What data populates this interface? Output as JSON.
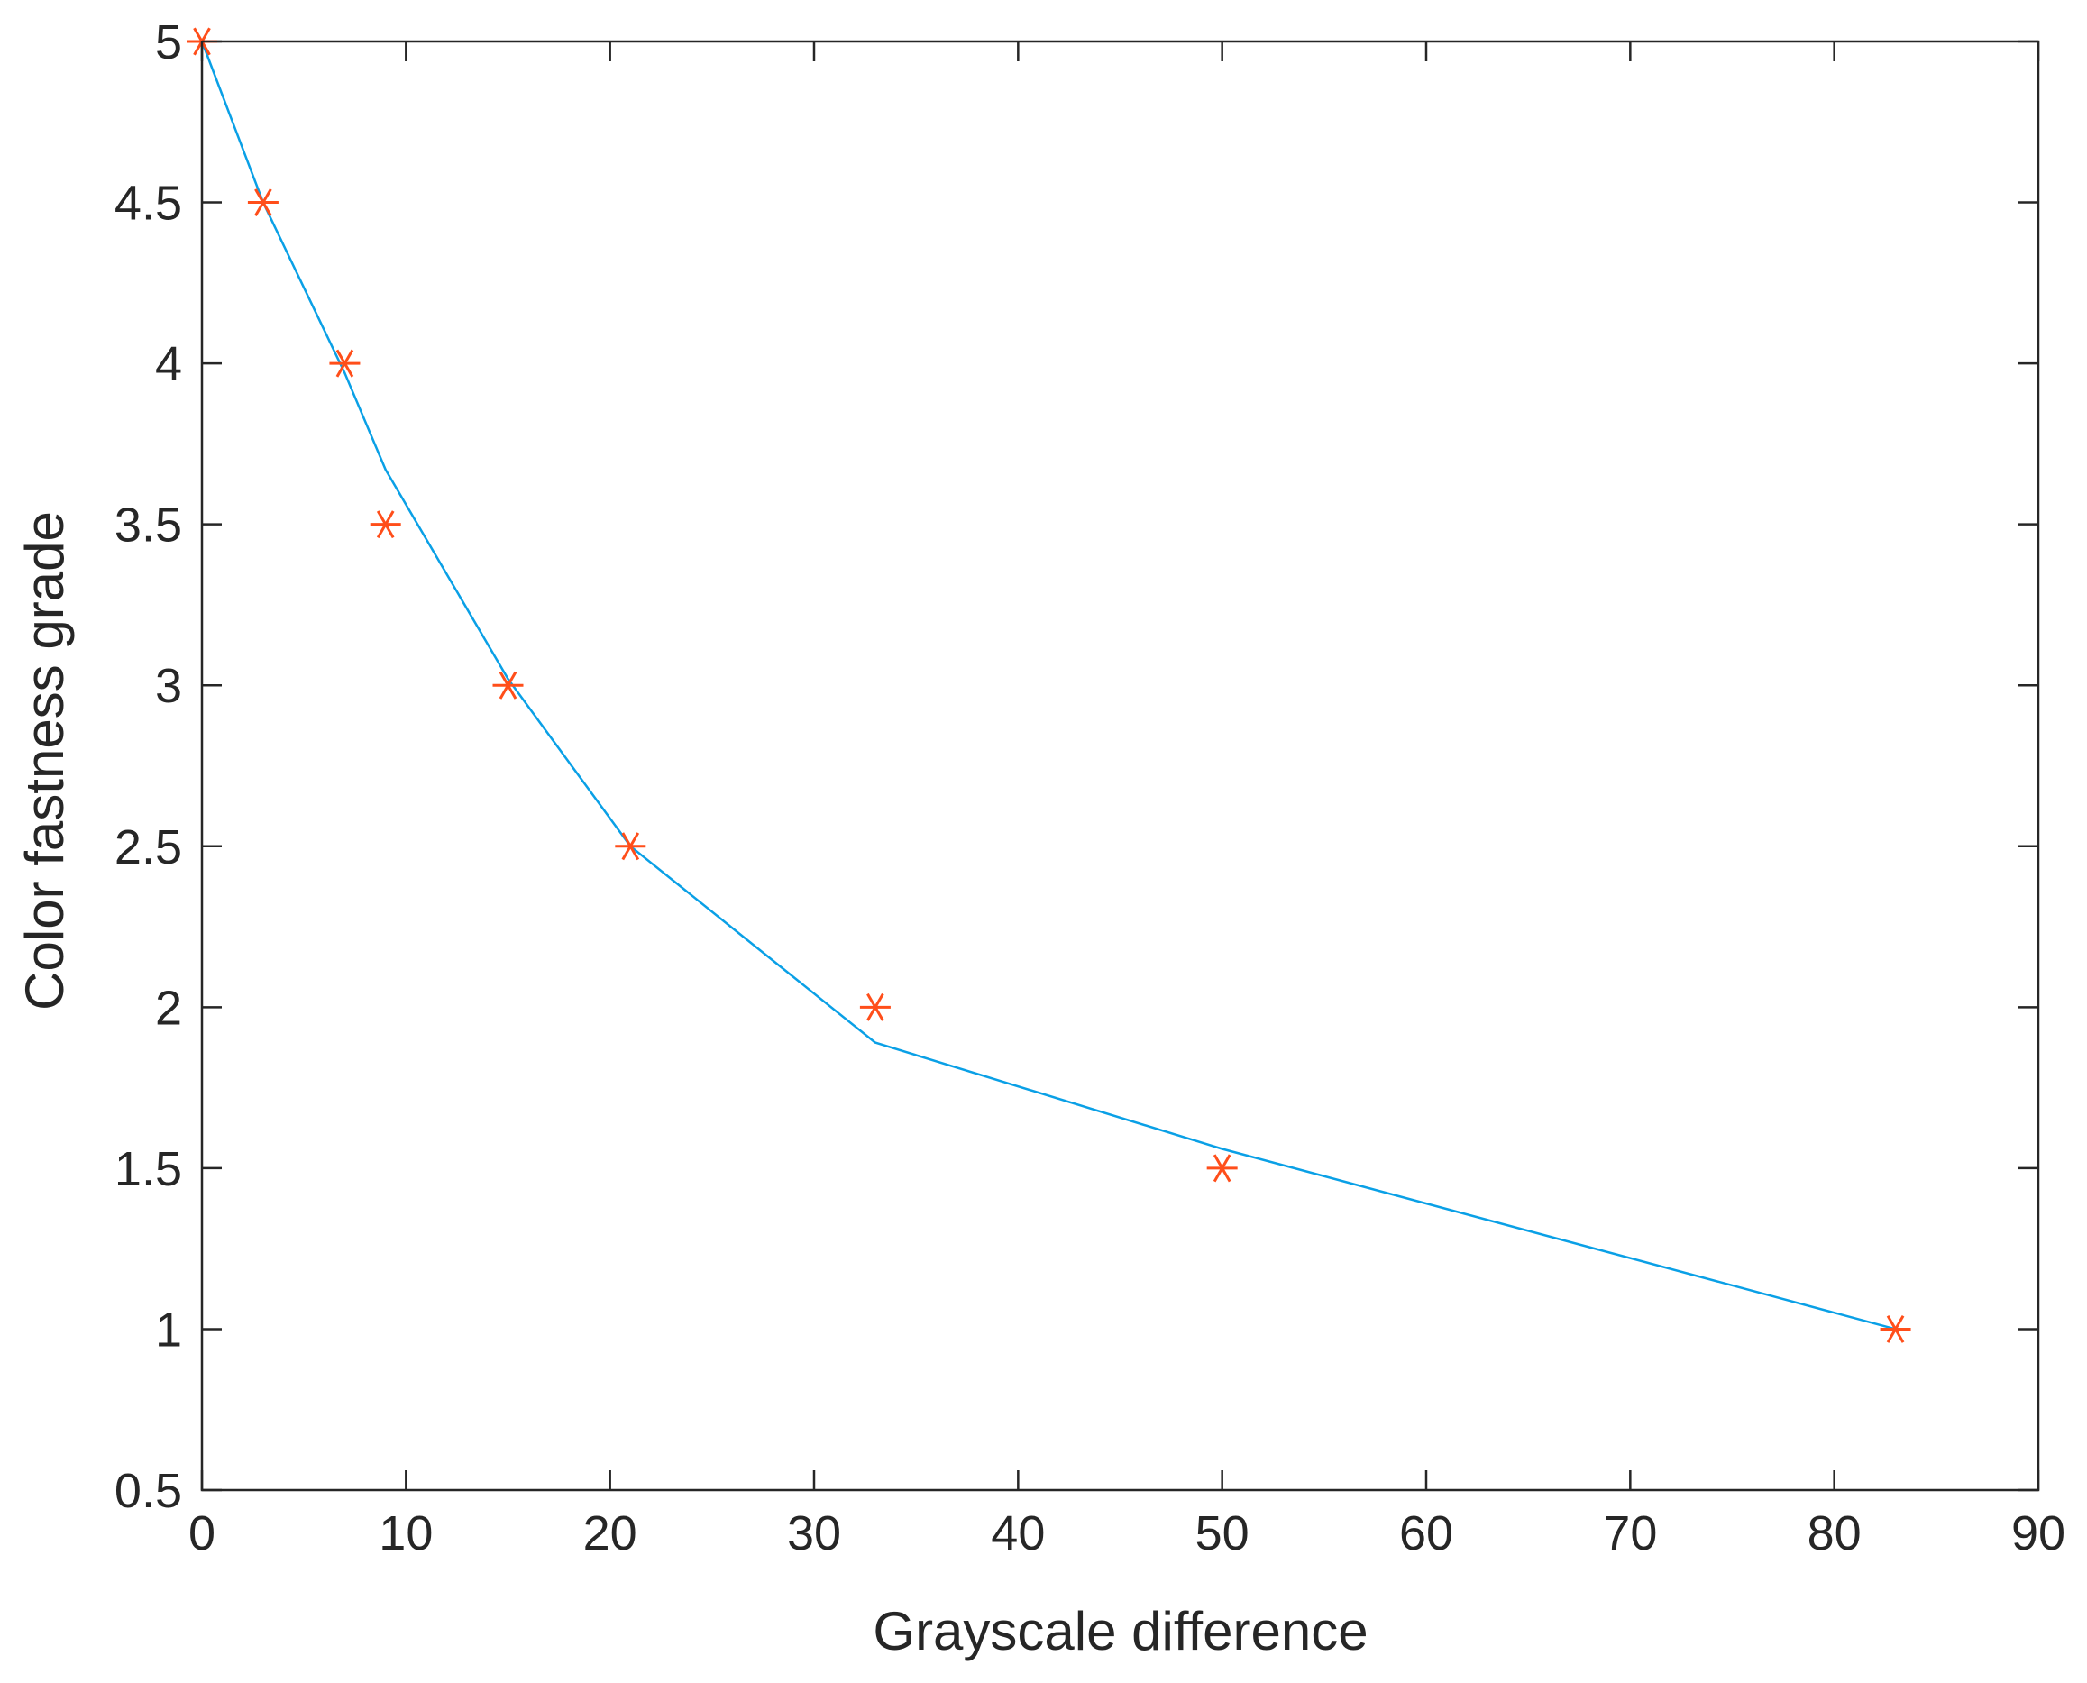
{
  "chart_data": {
    "type": "line",
    "title": "",
    "xlabel": "Grayscale difference",
    "ylabel": "Color fastness grade",
    "xlim": [
      0,
      90
    ],
    "ylim": [
      0.5,
      5
    ],
    "xticks": [
      0,
      10,
      20,
      30,
      40,
      50,
      60,
      70,
      80,
      90
    ],
    "yticks": [
      0.5,
      1,
      1.5,
      2,
      2.5,
      3,
      3.5,
      4,
      4.5,
      5
    ],
    "xtick_labels": [
      "0",
      "10",
      "20",
      "30",
      "40",
      "50",
      "60",
      "70",
      "80",
      "90"
    ],
    "ytick_labels": [
      "0.5",
      "1",
      "1.5",
      "2",
      "2.5",
      "3",
      "3.5",
      "4",
      "4.5",
      "5"
    ],
    "grid": false,
    "box": true,
    "series": [
      {
        "kind": "line",
        "color": "#0aa0e6",
        "x": [
          0,
          3,
          7,
          9,
          15,
          21,
          33,
          50,
          83
        ],
        "y": [
          5.0,
          4.5,
          3.97,
          3.67,
          3.02,
          2.5,
          1.89,
          1.56,
          1.0
        ]
      },
      {
        "kind": "scatter",
        "marker": "asterisk",
        "color": "#ff4e1a",
        "x": [
          0,
          3,
          7,
          9,
          15,
          21,
          33,
          50,
          83
        ],
        "y": [
          5.0,
          4.5,
          4.0,
          3.5,
          3.0,
          2.5,
          2.0,
          1.5,
          1.0
        ]
      }
    ]
  }
}
